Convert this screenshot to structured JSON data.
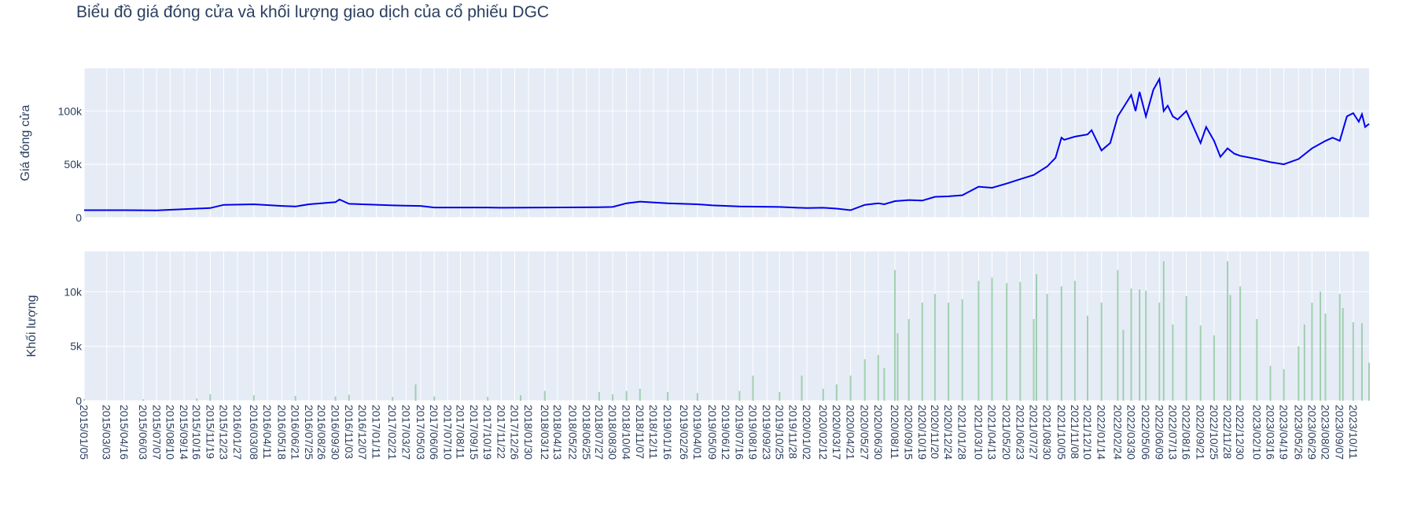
{
  "chart_title": "Biểu đồ giá đóng cửa và khối lượng giao dịch của cổ phiếu DGC",
  "colors": {
    "plot_bg": "#e5ecf6",
    "grid": "#ffffff",
    "price_line": "#0000ee",
    "volume_fill": "#8fc79e",
    "text": "#2a3f5f"
  },
  "chart_data": [
    {
      "type": "line",
      "ylabel": "Giá đóng cửa",
      "y_ticks": [
        {
          "value": 0,
          "label": "0"
        },
        {
          "value": 50000,
          "label": "50k"
        },
        {
          "value": 100000,
          "label": "100k"
        }
      ],
      "ylim": [
        0,
        140000
      ],
      "xlim": [
        "2015-01-05",
        "2023-11-20"
      ],
      "grid": true,
      "series": [
        {
          "x": [
            "2015-01-05",
            "2015-04-16",
            "2015-07-07",
            "2015-10-16",
            "2015-11-19",
            "2015-12-23",
            "2016-03-08",
            "2016-05-18",
            "2016-06-21",
            "2016-07-25",
            "2016-09-30",
            "2016-10-10",
            "2016-11-03",
            "2017-02-21",
            "2017-05-03",
            "2017-06-06",
            "2017-10-19",
            "2017-11-22",
            "2018-03-12",
            "2018-07-27",
            "2018-08-30",
            "2018-10-04",
            "2018-11-07",
            "2019-01-16",
            "2019-04-01",
            "2019-05-09",
            "2019-07-16",
            "2019-10-25",
            "2019-11-28",
            "2020-01-02",
            "2020-02-12",
            "2020-03-17",
            "2020-04-21",
            "2020-05-27",
            "2020-06-30",
            "2020-07-15",
            "2020-08-11",
            "2020-09-15",
            "2020-10-19",
            "2020-11-20",
            "2020-12-24",
            "2021-01-28",
            "2021-03-10",
            "2021-04-13",
            "2021-05-20",
            "2021-06-23",
            "2021-07-27",
            "2021-08-30",
            "2021-09-20",
            "2021-10-05",
            "2021-10-12",
            "2021-11-08",
            "2021-12-10",
            "2021-12-20",
            "2022-01-14",
            "2022-02-05",
            "2022-02-24",
            "2022-03-30",
            "2022-04-10",
            "2022-04-20",
            "2022-05-06",
            "2022-05-25",
            "2022-06-09",
            "2022-06-20",
            "2022-06-30",
            "2022-07-13",
            "2022-07-25",
            "2022-08-16",
            "2022-09-21",
            "2022-10-05",
            "2022-10-25",
            "2022-11-10",
            "2022-11-28",
            "2022-12-15",
            "2022-12-30",
            "2023-02-10",
            "2023-03-16",
            "2023-04-19",
            "2023-05-26",
            "2023-06-29",
            "2023-08-02",
            "2023-08-20",
            "2023-09-07",
            "2023-09-25",
            "2023-10-11",
            "2023-10-25",
            "2023-11-02",
            "2023-11-10",
            "2023-11-20"
          ],
          "y": [
            7000,
            7000,
            6800,
            8500,
            9000,
            12000,
            12500,
            11000,
            10500,
            12500,
            14500,
            17000,
            13000,
            11500,
            11000,
            9500,
            9500,
            9300,
            9500,
            9800,
            10000,
            13500,
            15000,
            13500,
            12500,
            11500,
            10500,
            10000,
            9500,
            9000,
            9300,
            8500,
            7000,
            12000,
            13500,
            12500,
            15500,
            16500,
            16000,
            19500,
            20000,
            21000,
            29000,
            28000,
            32000,
            36000,
            40000,
            48000,
            56000,
            75000,
            73000,
            76000,
            78000,
            82000,
            63000,
            70000,
            95000,
            115000,
            100000,
            118000,
            95000,
            120000,
            130000,
            100000,
            105000,
            95000,
            92000,
            100000,
            70000,
            85000,
            72000,
            57000,
            65000,
            60000,
            58000,
            55000,
            52000,
            50000,
            55000,
            65000,
            72000,
            75000,
            72000,
            95000,
            98000,
            90000,
            97000,
            85000,
            88000
          ]
        }
      ]
    },
    {
      "type": "bar",
      "ylabel": "Khối lượng",
      "y_ticks": [
        {
          "value": 0,
          "label": "0"
        },
        {
          "value": 5000,
          "label": "5k"
        },
        {
          "value": 10000,
          "label": "10k"
        }
      ],
      "ylim": [
        0,
        13700
      ],
      "xlim": [
        "2015-01-05",
        "2023-11-20"
      ],
      "grid": true,
      "series": [
        {
          "x": [
            "2015-01-05",
            "2015-06-03",
            "2015-10-16",
            "2015-11-19",
            "2016-03-08",
            "2016-06-21",
            "2016-09-30",
            "2016-11-03",
            "2017-02-21",
            "2017-04-20",
            "2017-06-06",
            "2017-10-19",
            "2018-01-10",
            "2018-03-12",
            "2018-07-27",
            "2018-08-30",
            "2018-10-04",
            "2018-11-07",
            "2019-01-16",
            "2019-04-01",
            "2019-07-16",
            "2019-08-19",
            "2019-10-25",
            "2019-12-20",
            "2020-02-12",
            "2020-03-17",
            "2020-04-21",
            "2020-05-27",
            "2020-06-30",
            "2020-07-15",
            "2020-08-11",
            "2020-08-18",
            "2020-09-15",
            "2020-10-19",
            "2020-11-20",
            "2020-12-24",
            "2021-01-28",
            "2021-03-10",
            "2021-04-13",
            "2021-05-20",
            "2021-06-23",
            "2021-07-27",
            "2021-08-03",
            "2021-08-30",
            "2021-10-05",
            "2021-11-08",
            "2021-12-10",
            "2022-01-14",
            "2022-02-24",
            "2022-03-10",
            "2022-03-30",
            "2022-04-20",
            "2022-05-06",
            "2022-06-09",
            "2022-06-20",
            "2022-07-13",
            "2022-08-16",
            "2022-09-21",
            "2022-10-25",
            "2022-11-28",
            "2022-12-05",
            "2022-12-30",
            "2023-02-10",
            "2023-03-16",
            "2023-04-19",
            "2023-05-26",
            "2023-06-10",
            "2023-06-29",
            "2023-07-20",
            "2023-08-02",
            "2023-09-07",
            "2023-09-15",
            "2023-10-11",
            "2023-11-02",
            "2023-11-20"
          ],
          "y": [
            150,
            120,
            200,
            600,
            500,
            450,
            400,
            550,
            350,
            1500,
            400,
            350,
            500,
            900,
            800,
            600,
            900,
            1100,
            800,
            700,
            900,
            2300,
            800,
            2300,
            1100,
            1500,
            2300,
            3800,
            4200,
            3000,
            12000,
            6200,
            7500,
            9000,
            9800,
            9000,
            9300,
            11000,
            11300,
            10800,
            10900,
            7500,
            11600,
            9800,
            10500,
            11000,
            7800,
            9000,
            12000,
            6500,
            10300,
            10200,
            10100,
            9000,
            12800,
            7000,
            9600,
            6900,
            6000,
            12800,
            9700,
            10500,
            7500,
            3200,
            2900,
            5000,
            7000,
            9000,
            10000,
            8000,
            9800,
            8500,
            7200,
            7100,
            3500
          ]
        }
      ]
    }
  ],
  "x_tick_labels": [
    "2015/01/05",
    "2015/03/03",
    "2015/04/16",
    "2015/06/03",
    "2015/07/07",
    "2015/08/10",
    "2015/09/14",
    "2015/10/16",
    "2015/11/19",
    "2015/12/23",
    "2016/01/27",
    "2016/03/08",
    "2016/04/11",
    "2016/05/18",
    "2016/06/21",
    "2016/07/25",
    "2016/08/26",
    "2016/09/30",
    "2016/11/03",
    "2016/12/07",
    "2017/01/11",
    "2017/02/21",
    "2017/03/27",
    "2017/05/03",
    "2017/06/06",
    "2017/07/10",
    "2017/08/11",
    "2017/09/15",
    "2017/10/19",
    "2017/11/22",
    "2017/12/26",
    "2018/01/30",
    "2018/03/12",
    "2018/04/13",
    "2018/05/22",
    "2018/06/25",
    "2018/07/27",
    "2018/08/30",
    "2018/10/04",
    "2018/11/07",
    "2018/12/11",
    "2019/01/16",
    "2019/02/26",
    "2019/04/01",
    "2019/05/09",
    "2019/06/12",
    "2019/07/16",
    "2019/08/19",
    "2019/09/23",
    "2019/10/25",
    "2019/11/28",
    "2020/01/02",
    "2020/02/12",
    "2020/03/17",
    "2020/04/21",
    "2020/05/27",
    "2020/06/30",
    "2020/08/11",
    "2020/09/15",
    "2020/10/19",
    "2020/11/20",
    "2020/12/24",
    "2021/01/28",
    "2021/03/10",
    "2021/04/13",
    "2021/05/20",
    "2021/06/23",
    "2021/07/27",
    "2021/08/30",
    "2021/10/05",
    "2021/11/08",
    "2021/12/10",
    "2022/01/14",
    "2022/02/24",
    "2022/03/30",
    "2022/05/06",
    "2022/06/09",
    "2022/07/13",
    "2022/08/16",
    "2022/09/21",
    "2022/10/25",
    "2022/11/28",
    "2022/12/30",
    "2023/02/10",
    "2023/03/16",
    "2023/04/19",
    "2023/05/26",
    "2023/06/29",
    "2023/08/02",
    "2023/09/07",
    "2023/10/11"
  ]
}
